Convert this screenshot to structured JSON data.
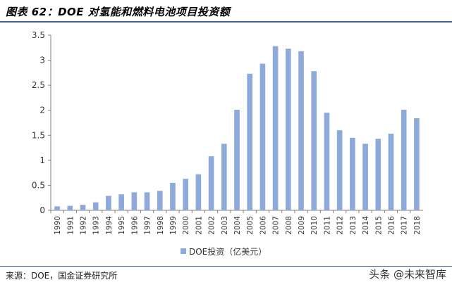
{
  "title": "图表 62：DOE 对氢能和燃料电池项目投资额",
  "source": "来源：DOE，国金证券研究所",
  "watermark": "头条 @未来智库",
  "colors": {
    "bar": "#8eaadb",
    "axis": "#7f7f7f",
    "rule": "#3f5f8f"
  },
  "chart_data": {
    "type": "bar",
    "categories": [
      "1990",
      "1991",
      "1992",
      "1993",
      "1994",
      "1995",
      "1996",
      "1997",
      "1998",
      "1999",
      "2000",
      "2001",
      "2002",
      "2003",
      "2004",
      "2005",
      "2006",
      "2007",
      "2008",
      "2009",
      "2010",
      "2011",
      "2012",
      "2013",
      "2014",
      "2015",
      "2016",
      "2017",
      "2018"
    ],
    "series": [
      {
        "name": "DOE投资（亿美元）",
        "values": [
          0.08,
          0.09,
          0.11,
          0.16,
          0.29,
          0.32,
          0.36,
          0.36,
          0.39,
          0.55,
          0.63,
          0.72,
          1.08,
          1.33,
          2.01,
          2.73,
          2.93,
          3.28,
          3.23,
          3.18,
          2.78,
          1.95,
          1.6,
          1.45,
          1.33,
          1.43,
          1.53,
          2.01,
          1.84
        ]
      }
    ],
    "yticks": [
      "0",
      "0.5",
      "1",
      "1.5",
      "2",
      "2.5",
      "3",
      "3.5"
    ],
    "ylim": [
      0,
      3.5
    ],
    "grid": false,
    "legend": "bottom"
  }
}
